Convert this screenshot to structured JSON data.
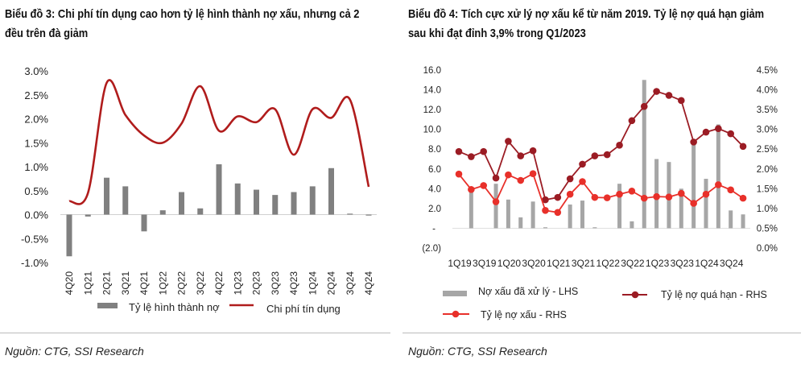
{
  "chart_data": [
    {
      "type": "bar+line",
      "title_line1": "Biểu đồ 3: Chi phí tín dụng cao hơn tỷ lệ hình thành nợ xấu, nhưng cả 2",
      "title_line2": "đều trên đà giảm",
      "categories": [
        "4Q20",
        "1Q21",
        "2Q21",
        "3Q21",
        "4Q21",
        "1Q22",
        "2Q22",
        "3Q22",
        "4Q22",
        "1Q23",
        "2Q23",
        "3Q23",
        "4Q23",
        "1Q24",
        "2Q24",
        "3Q24",
        "4Q24"
      ],
      "series": [
        {
          "name": "Tỷ lệ hình thành nợ",
          "type": "bar",
          "color": "#808080",
          "values": [
            -0.87,
            -0.04,
            0.77,
            0.59,
            -0.35,
            0.09,
            0.47,
            0.13,
            1.05,
            0.65,
            0.52,
            0.41,
            0.47,
            0.59,
            0.97,
            0.02,
            -0.02
          ]
        },
        {
          "name": "Chi phí tín dụng",
          "type": "line",
          "color": "#b01c1c",
          "values": [
            0.28,
            0.45,
            2.75,
            2.08,
            1.65,
            1.5,
            1.9,
            2.68,
            1.75,
            2.05,
            1.93,
            2.2,
            1.25,
            2.2,
            2.02,
            2.4,
            0.58
          ]
        }
      ],
      "yticks": [
        "3.0%",
        "2.5%",
        "2.0%",
        "1.5%",
        "1.0%",
        "0.5%",
        "0.0%",
        "-0.5%",
        "-1.0%"
      ],
      "ylim": [
        -1.0,
        3.0
      ],
      "legend": "bottom",
      "source": "Nguồn: CTG, SSI Research"
    },
    {
      "type": "bar+line",
      "title_line1": "Biểu đồ 4: Tích cực xử lý nợ xấu kể từ năm 2019. Tỷ lệ nợ quá hạn giảm",
      "title_line2": "sau khi đạt đỉnh 3,9% trong Q1/2023",
      "categories": [
        "1Q19",
        "2Q19",
        "3Q19",
        "4Q19",
        "1Q20",
        "2Q20",
        "3Q20",
        "4Q20",
        "1Q21",
        "2Q21",
        "3Q21",
        "4Q21",
        "1Q22",
        "2Q22",
        "3Q22",
        "4Q22",
        "1Q23",
        "2Q23",
        "3Q23",
        "4Q23",
        "1Q24",
        "2Q24",
        "3Q24",
        "4Q24"
      ],
      "xtick_labels": [
        "1Q19",
        "3Q19",
        "1Q20",
        "3Q20",
        "1Q21",
        "3Q21",
        "1Q22",
        "3Q22",
        "1Q23",
        "3Q23",
        "1Q24",
        "3Q24"
      ],
      "series": [
        {
          "name": "Nợ xấu đã xử lý - LHS",
          "type": "bar",
          "axis": "left",
          "color": "#a6a6a6",
          "values": [
            0,
            4.0,
            0,
            4.5,
            2.9,
            1.1,
            2.7,
            0.1,
            0,
            2.4,
            2.8,
            0.1,
            0,
            4.5,
            0.7,
            15.0,
            7.0,
            6.7,
            4.0,
            8.8,
            5.0,
            10.5,
            1.8,
            1.4
          ]
        },
        {
          "name": "Tỷ lệ nợ quá hạn - RHS",
          "type": "line",
          "axis": "right",
          "color": "#9b1c24",
          "values": [
            2.44,
            2.31,
            2.44,
            1.77,
            2.7,
            2.33,
            2.46,
            1.22,
            1.28,
            1.75,
            2.12,
            2.33,
            2.36,
            2.6,
            3.22,
            3.58,
            3.96,
            3.86,
            3.73,
            2.68,
            2.93,
            3.02,
            2.89,
            2.57
          ]
        },
        {
          "name": "Tỷ lệ nợ xấu - RHS",
          "type": "line",
          "axis": "right",
          "color": "#e8302a",
          "values": [
            1.87,
            1.48,
            1.58,
            1.17,
            1.85,
            1.71,
            1.88,
            0.95,
            0.9,
            1.36,
            1.68,
            1.28,
            1.27,
            1.36,
            1.44,
            1.26,
            1.3,
            1.29,
            1.38,
            1.13,
            1.36,
            1.6,
            1.47,
            1.26
          ]
        }
      ],
      "yticks_left": [
        "16.0",
        "14.0",
        "12.0",
        "10.0",
        "8.0",
        "6.0",
        "4.0",
        "2.0",
        "-",
        "(2.0)"
      ],
      "ylim_left": [
        -2.0,
        16.0
      ],
      "yticks_right": [
        "4.5%",
        "4.0%",
        "3.5%",
        "3.0%",
        "2.5%",
        "2.0%",
        "1.5%",
        "1.0%",
        "0.5%",
        "0.0%"
      ],
      "ylim_right": [
        0.0,
        4.5
      ],
      "legend": "bottom",
      "source": "Nguồn: CTG, SSI Research"
    }
  ]
}
